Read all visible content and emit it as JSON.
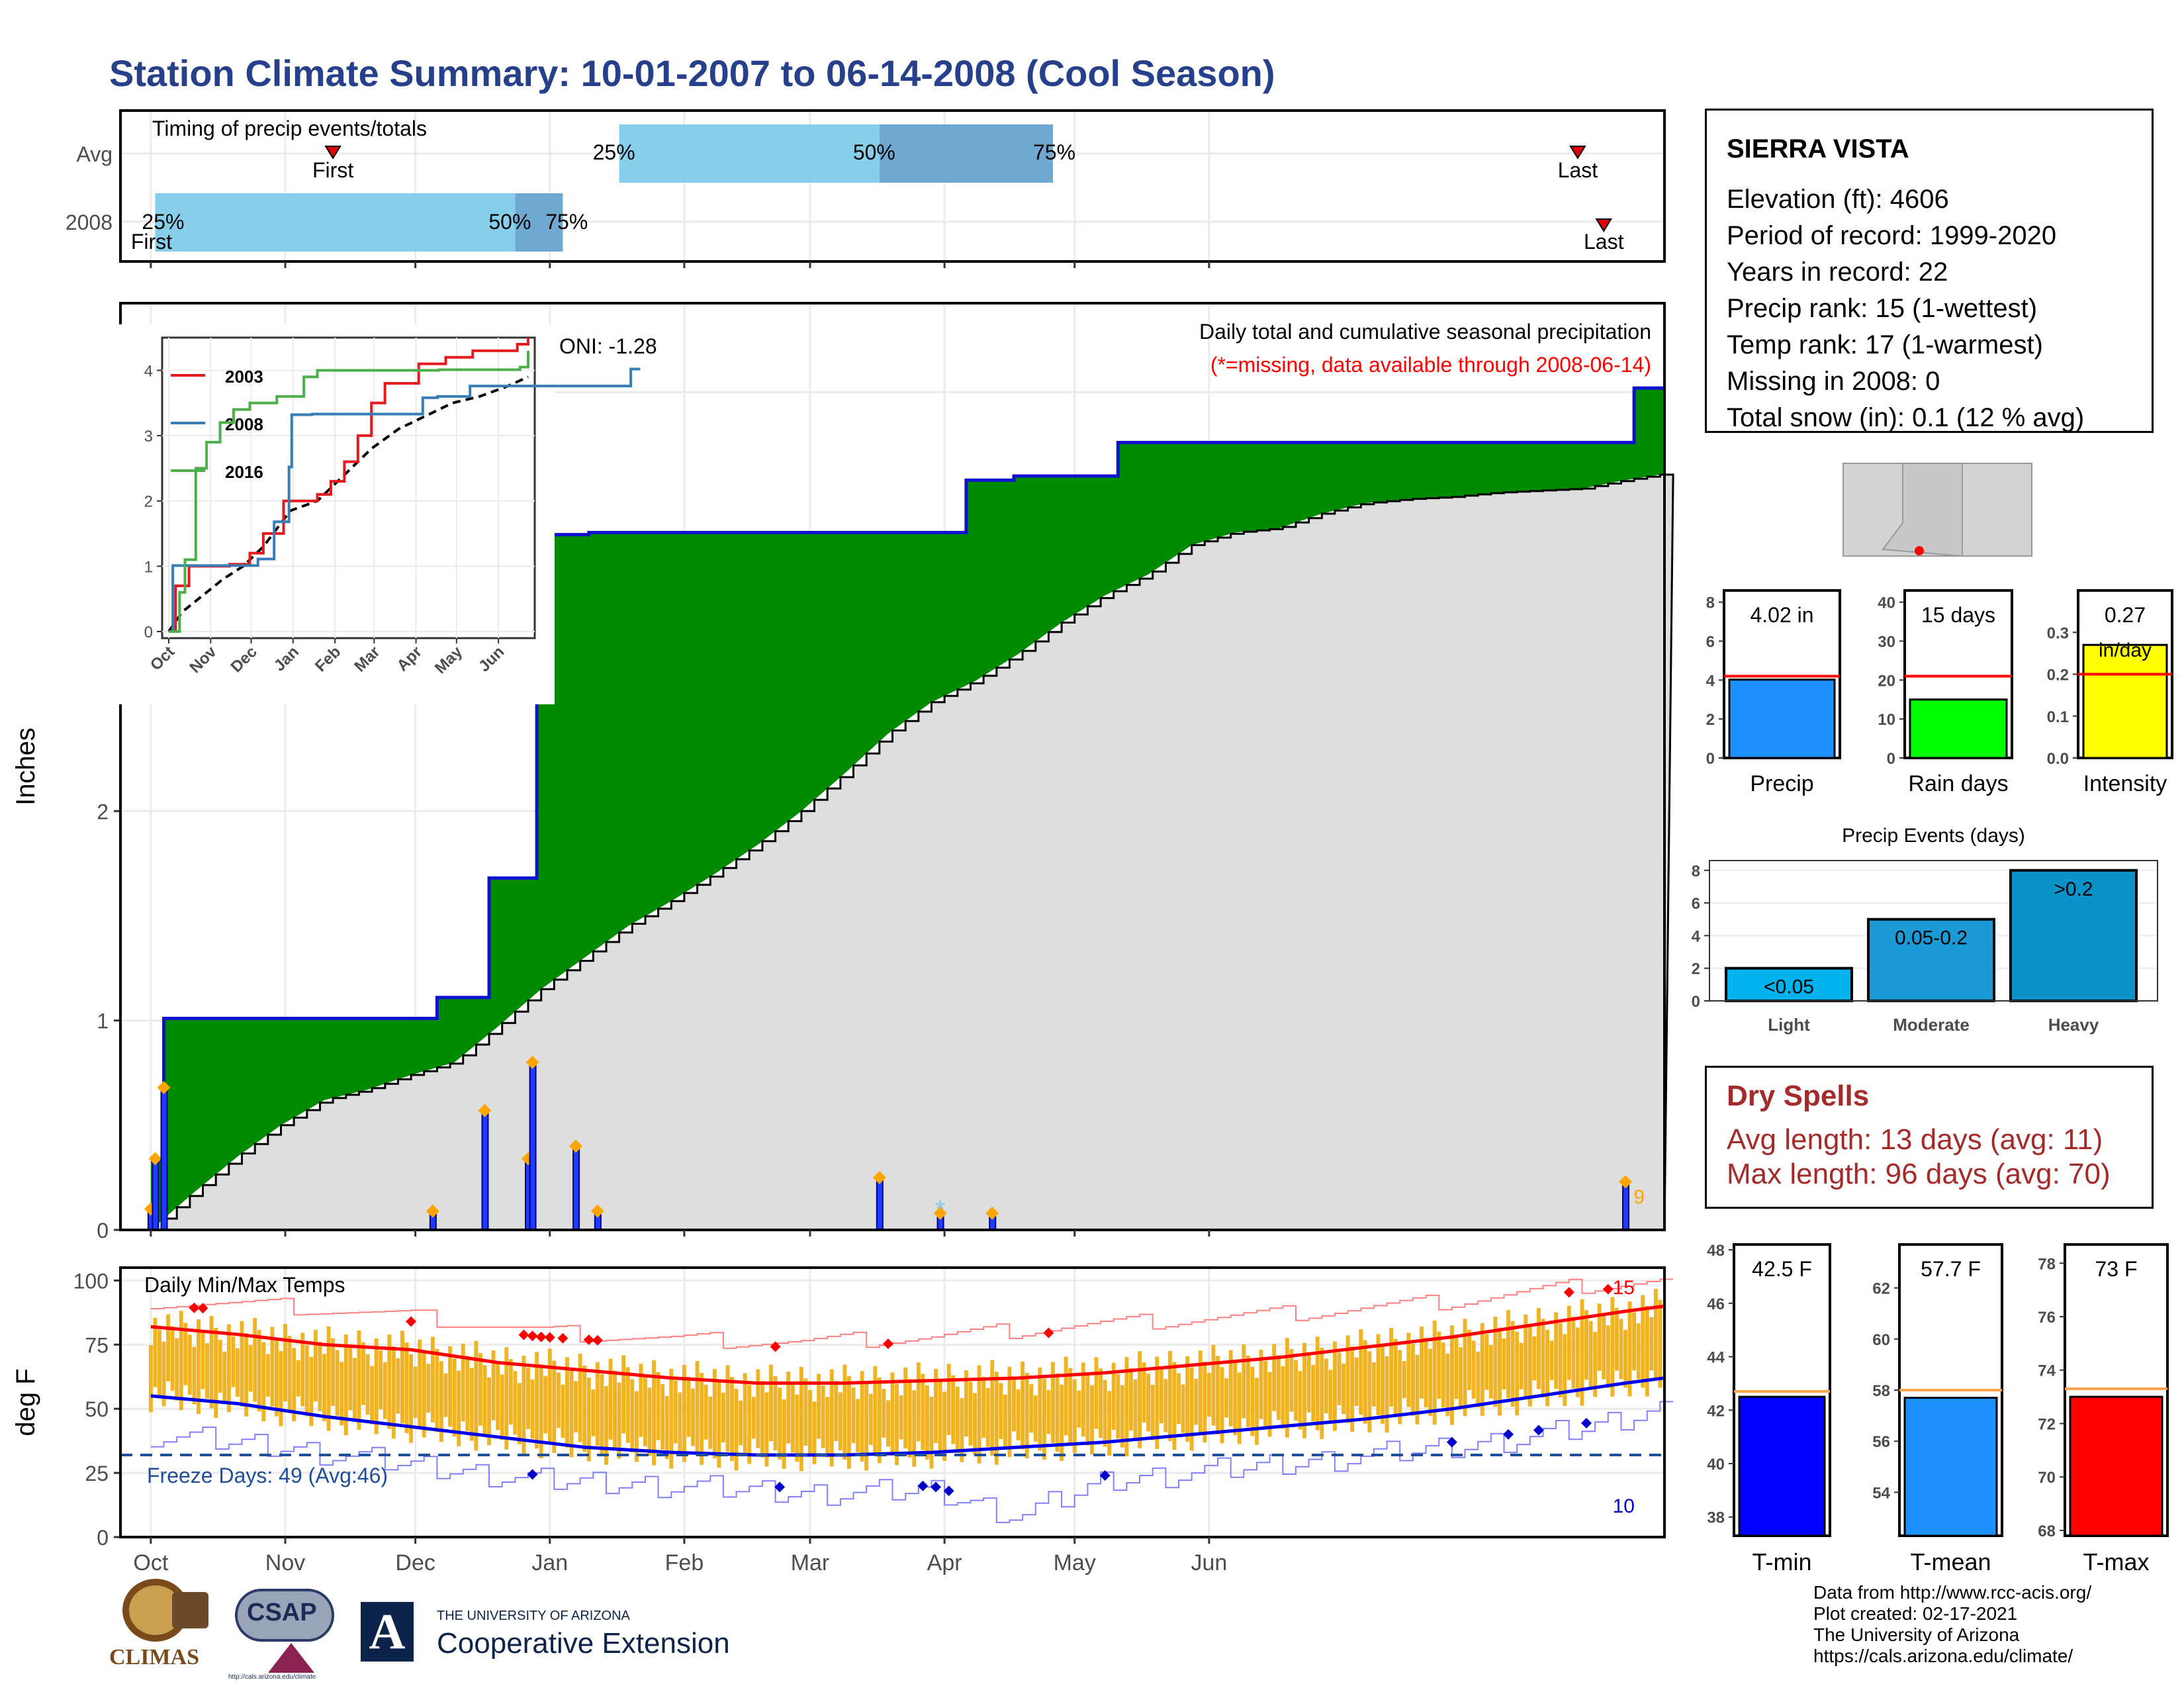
{
  "title": "Station Climate Summary: 10-01-2007 to 06-14-2008 (Cool Season)",
  "station_info": {
    "name": "SIERRA VISTA",
    "elevation": "Elevation (ft): 4606",
    "period": "Period of record: 1999-2020",
    "years": "Years in record: 22",
    "precip_rank": "Precip rank: 15 (1-wettest)",
    "temp_rank": "Temp rank: 17 (1-warmest)",
    "missing": "Missing in 2008: 0",
    "snow": "Total snow (in): 0.1 (12 % avg)"
  },
  "dry_spells": {
    "title": "Dry Spells",
    "avg": "Avg length: 13 days (avg: 11)",
    "max": "Max length: 96 days (avg: 70)"
  },
  "credits": {
    "line1": "Data from http://www.rcc-acis.org/",
    "line2": "Plot created: 02-17-2021",
    "line3": "The University of Arizona",
    "line4": "https://cals.arizona.edu/climate/"
  },
  "logos": {
    "climas": "CLIMAS",
    "csap": "CSAP",
    "ua_small": "THE UNIVERSITY OF ARIZONA",
    "coop": "Cooperative Extension",
    "csap_url": "http://cals.arizona.edu/climate"
  },
  "colors": {
    "title": "#27408B",
    "green_fill": "#008B00",
    "avg_fill": "#DEDEDE",
    "precip_bar": "#1E3CFF",
    "tmax_line": "#FF0000",
    "tmin_line": "#0000EE",
    "range_bar": "#F0B323",
    "dry_spells": "#A52A2A"
  },
  "chart_data": [
    {
      "id": "timing",
      "type": "bar",
      "title": "Timing of precip events/totals",
      "rows": [
        "Avg",
        "2008"
      ],
      "avg_row": {
        "p25": "25%",
        "p50": "50%",
        "p75": "75%",
        "first": "First",
        "last": "Last"
      },
      "row_2008": {
        "p25": "25%",
        "p50": "50%",
        "p75": "75%",
        "first": "First",
        "last": "Last"
      }
    },
    {
      "id": "cumulative",
      "type": "area",
      "title": "Daily total and cumulative seasonal precipitation",
      "subtitle": "(*=missing, data available through 2008-06-14)",
      "ylabel": "Inches",
      "ylim": [
        0,
        4.4
      ],
      "yticks": [
        "0",
        "1",
        "2",
        "3",
        "4"
      ],
      "oni": "ONI: -1.28",
      "count_label": "9",
      "cum_2008_steps": [
        [
          0,
          0.33
        ],
        [
          2,
          0.33
        ],
        [
          3,
          1.01
        ],
        [
          65,
          1.01
        ],
        [
          66,
          1.11
        ],
        [
          77,
          1.11
        ],
        [
          78,
          1.68
        ],
        [
          88,
          1.68
        ],
        [
          89,
          2.52
        ],
        [
          90,
          2.52
        ],
        [
          91,
          3.32
        ],
        [
          100,
          3.32
        ],
        [
          101,
          3.33
        ],
        [
          105,
          3.33
        ],
        [
          106,
          3.33
        ],
        [
          187,
          3.33
        ],
        [
          188,
          3.58
        ],
        [
          198,
          3.58
        ],
        [
          199,
          3.6
        ],
        [
          222,
          3.6
        ],
        [
          223,
          3.76
        ],
        [
          257,
          3.76
        ],
        [
          258,
          3.76
        ],
        [
          341,
          3.76
        ],
        [
          342,
          4.02
        ],
        [
          349,
          4.02
        ]
      ],
      "cum_avg": [
        [
          0,
          0.0
        ],
        [
          10,
          0.18
        ],
        [
          20,
          0.35
        ],
        [
          30,
          0.5
        ],
        [
          40,
          0.62
        ],
        [
          50,
          0.67
        ],
        [
          60,
          0.74
        ],
        [
          70,
          0.8
        ],
        [
          80,
          0.97
        ],
        [
          90,
          1.15
        ],
        [
          100,
          1.3
        ],
        [
          110,
          1.45
        ],
        [
          120,
          1.57
        ],
        [
          130,
          1.7
        ],
        [
          140,
          1.84
        ],
        [
          150,
          2.0
        ],
        [
          160,
          2.18
        ],
        [
          170,
          2.37
        ],
        [
          180,
          2.52
        ],
        [
          190,
          2.62
        ],
        [
          200,
          2.75
        ],
        [
          210,
          2.9
        ],
        [
          220,
          3.03
        ],
        [
          230,
          3.13
        ],
        [
          240,
          3.27
        ],
        [
          250,
          3.33
        ],
        [
          260,
          3.35
        ],
        [
          270,
          3.42
        ],
        [
          280,
          3.47
        ],
        [
          290,
          3.49
        ],
        [
          300,
          3.5
        ],
        [
          310,
          3.52
        ],
        [
          320,
          3.53
        ],
        [
          330,
          3.54
        ],
        [
          340,
          3.58
        ],
        [
          349,
          3.61
        ]
      ],
      "daily_precip": [
        [
          0,
          0.1
        ],
        [
          1,
          0.34
        ],
        [
          3,
          0.68
        ],
        [
          65,
          0.09
        ],
        [
          77,
          0.57
        ],
        [
          87,
          0.34
        ],
        [
          88,
          0.8
        ],
        [
          98,
          0.4
        ],
        [
          103,
          0.09
        ],
        [
          168,
          0.25
        ],
        [
          182,
          0.08
        ],
        [
          194,
          0.08
        ],
        [
          340,
          0.23
        ]
      ],
      "x_tick_labels": [
        "Oct",
        "Nov",
        "Dec",
        "Jan",
        "Feb",
        "Mar",
        "Apr",
        "May",
        "Jun"
      ]
    },
    {
      "id": "inset",
      "type": "line",
      "ylim": [
        0,
        4.4
      ],
      "yticks": [
        "0",
        "1",
        "2",
        "3",
        "4"
      ],
      "xticks": [
        "Oct",
        "Nov",
        "Dec",
        "Jan",
        "Feb",
        "Mar",
        "Apr",
        "May",
        "Jun"
      ],
      "series": [
        {
          "name": "2003",
          "color": "#E41A1C",
          "points": [
            [
              0,
              0.0
            ],
            [
              5,
              0.7
            ],
            [
              15,
              1.0
            ],
            [
              30,
              1.0
            ],
            [
              45,
              1.03
            ],
            [
              60,
              1.2
            ],
            [
              70,
              1.5
            ],
            [
              85,
              2.0
            ],
            [
              95,
              2.0
            ],
            [
              110,
              2.1
            ],
            [
              120,
              2.3
            ],
            [
              130,
              2.6
            ],
            [
              140,
              3.0
            ],
            [
              150,
              3.5
            ],
            [
              160,
              3.8
            ],
            [
              170,
              3.8
            ],
            [
              185,
              4.1
            ],
            [
              205,
              4.2
            ],
            [
              225,
              4.3
            ],
            [
              245,
              4.3
            ],
            [
              258,
              4.4
            ],
            [
              266,
              4.5
            ]
          ]
        },
        {
          "name": "2008",
          "color": "#377EB8",
          "points": [
            [
              0,
              0.0
            ],
            [
              3,
              1.01
            ],
            [
              66,
              1.11
            ],
            [
              78,
              1.68
            ],
            [
              89,
              2.52
            ],
            [
              91,
              3.32
            ],
            [
              106,
              3.33
            ],
            [
              188,
              3.58
            ],
            [
              199,
              3.6
            ],
            [
              223,
              3.76
            ],
            [
              342,
              4.02
            ],
            [
              349,
              4.02
            ]
          ]
        },
        {
          "name": "2016",
          "color": "#4DAF4A",
          "points": [
            [
              0,
              0.0
            ],
            [
              8,
              0.6
            ],
            [
              12,
              1.1
            ],
            [
              20,
              2.5
            ],
            [
              28,
              2.9
            ],
            [
              38,
              3.2
            ],
            [
              48,
              3.4
            ],
            [
              60,
              3.5
            ],
            [
              80,
              3.6
            ],
            [
              90,
              3.6
            ],
            [
              100,
              3.9
            ],
            [
              110,
              4.0
            ],
            [
              150,
              4.0
            ],
            [
              200,
              4.01
            ],
            [
              260,
              4.05
            ],
            [
              266,
              4.3
            ]
          ]
        }
      ],
      "average": [
        [
          0,
          0.0
        ],
        [
          10,
          0.3
        ],
        [
          25,
          0.55
        ],
        [
          40,
          0.8
        ],
        [
          55,
          1.0
        ],
        [
          70,
          1.3
        ],
        [
          90,
          1.85
        ],
        [
          110,
          2.0
        ],
        [
          130,
          2.4
        ],
        [
          150,
          2.8
        ],
        [
          170,
          3.1
        ],
        [
          190,
          3.3
        ],
        [
          210,
          3.5
        ],
        [
          230,
          3.6
        ],
        [
          250,
          3.75
        ],
        [
          266,
          3.9
        ]
      ]
    },
    {
      "id": "temps",
      "type": "line",
      "title": "Daily Min/Max Temps",
      "ylabel": "deg F",
      "ylim": [
        0,
        105
      ],
      "yticks": [
        "0",
        "25",
        "50",
        "75",
        "100"
      ],
      "freeze": "Freeze Days: 49 (Avg:46)",
      "freeze_level": 32,
      "hot_count": "15",
      "cold_count": "10",
      "tmax_avg": [
        [
          0,
          82
        ],
        [
          20,
          79
        ],
        [
          40,
          75
        ],
        [
          60,
          73
        ],
        [
          80,
          68
        ],
        [
          100,
          65
        ],
        [
          120,
          62
        ],
        [
          140,
          60
        ],
        [
          160,
          60
        ],
        [
          180,
          61
        ],
        [
          200,
          62
        ],
        [
          220,
          64
        ],
        [
          240,
          67
        ],
        [
          260,
          70
        ],
        [
          280,
          74
        ],
        [
          300,
          78
        ],
        [
          320,
          83
        ],
        [
          340,
          88
        ],
        [
          349,
          90
        ]
      ],
      "tmin_avg": [
        [
          0,
          55
        ],
        [
          20,
          52
        ],
        [
          40,
          47
        ],
        [
          60,
          43
        ],
        [
          80,
          39
        ],
        [
          100,
          35
        ],
        [
          120,
          33
        ],
        [
          140,
          32
        ],
        [
          160,
          32
        ],
        [
          180,
          33
        ],
        [
          200,
          35
        ],
        [
          220,
          37
        ],
        [
          240,
          40
        ],
        [
          260,
          43
        ],
        [
          280,
          46
        ],
        [
          300,
          50
        ],
        [
          320,
          55
        ],
        [
          340,
          60
        ],
        [
          349,
          62
        ]
      ],
      "tmax_record": [
        [
          0,
          92
        ],
        [
          30,
          90
        ],
        [
          60,
          86
        ],
        [
          90,
          80
        ],
        [
          120,
          77
        ],
        [
          150,
          76
        ],
        [
          180,
          78
        ],
        [
          210,
          82
        ],
        [
          240,
          85
        ],
        [
          270,
          88
        ],
        [
          300,
          92
        ],
        [
          330,
          98
        ],
        [
          349,
          100
        ]
      ],
      "tmin_record": [
        [
          0,
          40
        ],
        [
          30,
          35
        ],
        [
          60,
          28
        ],
        [
          90,
          22
        ],
        [
          120,
          20
        ],
        [
          150,
          17
        ],
        [
          180,
          18
        ],
        [
          200,
          8
        ],
        [
          220,
          22
        ],
        [
          240,
          25
        ],
        [
          270,
          30
        ],
        [
          300,
          35
        ],
        [
          330,
          42
        ],
        [
          349,
          50
        ]
      ],
      "x_tick_labels": [
        "Oct",
        "Nov",
        "Dec",
        "Jan",
        "Feb",
        "Mar",
        "Apr",
        "May",
        "Jun"
      ]
    },
    {
      "id": "precip_summary",
      "type": "bar",
      "panels": [
        {
          "label": "Precip",
          "value": 4.02,
          "avg": 4.2,
          "ymax": 8.6,
          "ticks": [
            "0",
            "2",
            "4",
            "6",
            "8"
          ],
          "text": "4.02 in",
          "color": "#1E90FF"
        },
        {
          "label": "Rain days",
          "value": 15,
          "avg": 21,
          "ymax": 43,
          "ticks": [
            "0",
            "10",
            "20",
            "30",
            "40"
          ],
          "text": "15 days",
          "color": "#00FF00"
        },
        {
          "label": "Intensity",
          "value": 0.27,
          "avg": 0.2,
          "ymax": 0.4,
          "ticks": [
            "0.0",
            "0.1",
            "0.2",
            "0.3"
          ],
          "text": "0.27",
          "text2": "in/day",
          "color": "#FFFF00"
        }
      ]
    },
    {
      "id": "precip_events",
      "type": "bar",
      "title": "Precip Events (days)",
      "categories": [
        "Light",
        "Moderate",
        "Heavy"
      ],
      "values": [
        2,
        5,
        8
      ],
      "labels": [
        "<0.05",
        "0.05-0.2",
        ">0.2"
      ],
      "ylim": [
        0,
        8.6
      ],
      "yticks": [
        "0",
        "2",
        "4",
        "6",
        "8"
      ],
      "colors": [
        "#00B2EE",
        "#1C9AD6",
        "#0B93C9"
      ]
    },
    {
      "id": "temp_summary",
      "type": "bar",
      "panels": [
        {
          "label": "T-min",
          "value": 42.5,
          "avg": 42.7,
          "ymin": 37.3,
          "ymax": 48.2,
          "ticks": [
            "38",
            "40",
            "42",
            "44",
            "46",
            "48"
          ],
          "text": "42.5 F",
          "color": "#0000FF"
        },
        {
          "label": "T-mean",
          "value": 57.7,
          "avg": 58.0,
          "ymin": 52.3,
          "ymax": 63.7,
          "ticks": [
            "54",
            "56",
            "58",
            "60",
            "62"
          ],
          "text": "57.7 F",
          "color": "#1E90FF"
        },
        {
          "label": "T-max",
          "value": 73,
          "avg": 73.3,
          "ymin": 67.8,
          "ymax": 78.7,
          "ticks": [
            "68",
            "70",
            "72",
            "74",
            "76",
            "78"
          ],
          "text": "73 F",
          "color": "#FF0000"
        }
      ]
    }
  ]
}
